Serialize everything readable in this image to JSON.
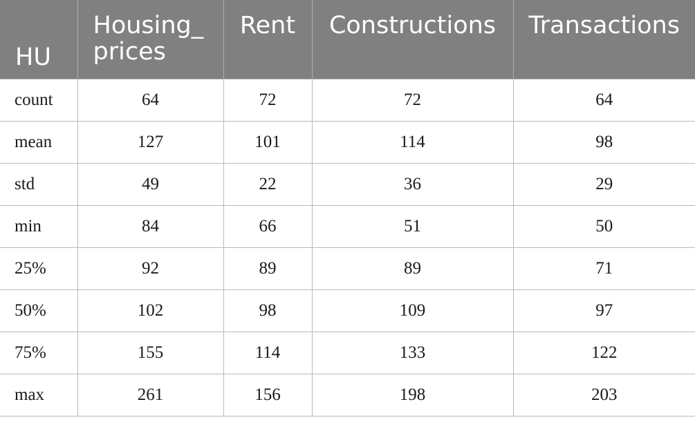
{
  "table": {
    "headers": [
      "HU",
      "Housing_\nprices",
      "Rent",
      "Constructions",
      "Transactions"
    ],
    "rows": [
      {
        "label": "count",
        "values": [
          "64",
          "72",
          "72",
          "64"
        ]
      },
      {
        "label": "mean",
        "values": [
          "127",
          "101",
          "114",
          "98"
        ]
      },
      {
        "label": "std",
        "values": [
          "49",
          "22",
          "36",
          "29"
        ]
      },
      {
        "label": "min",
        "values": [
          "84",
          "66",
          "51",
          "50"
        ]
      },
      {
        "label": "25%",
        "values": [
          "92",
          "89",
          "89",
          "71"
        ]
      },
      {
        "label": "50%",
        "values": [
          "102",
          "98",
          "109",
          "97"
        ]
      },
      {
        "label": "75%",
        "values": [
          "155",
          "114",
          "133",
          "122"
        ]
      },
      {
        "label": "max",
        "values": [
          "261",
          "156",
          "198",
          "203"
        ]
      }
    ]
  },
  "colors": {
    "header_background": "#808080",
    "header_text": "#ffffff",
    "grid_line": "#b8b8b8",
    "cell_text": "#1a1a1a"
  }
}
